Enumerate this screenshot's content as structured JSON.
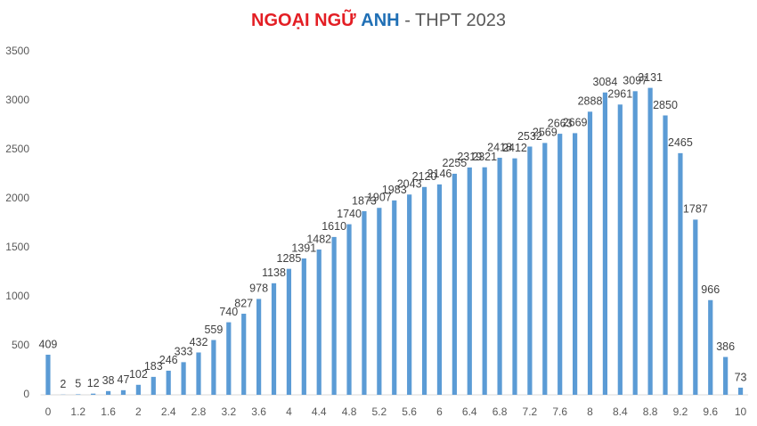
{
  "chart_data": {
    "type": "bar",
    "title": [
      "NGOẠI NGỮ",
      "ANH",
      "- THPT 2023"
    ],
    "title_colors": [
      "#e31e24",
      "#1f6fb5",
      "#595959"
    ],
    "categories": [
      "0",
      null,
      "1.2",
      null,
      "1.6",
      null,
      "2",
      null,
      "2.4",
      null,
      "2.8",
      null,
      "3.2",
      null,
      "3.6",
      null,
      "4",
      null,
      "4.4",
      null,
      "4.8",
      null,
      "5.2",
      null,
      "5.6",
      null,
      "6",
      null,
      "6.4",
      null,
      "6.8",
      null,
      "7.2",
      null,
      "7.6",
      null,
      "8",
      null,
      "8.4",
      null,
      "8.8",
      null,
      "9.2",
      null,
      "9.6",
      null,
      "10"
    ],
    "values": [
      409,
      2,
      5,
      12,
      38,
      47,
      102,
      183,
      246,
      333,
      432,
      559,
      740,
      827,
      978,
      1138,
      1285,
      1391,
      1482,
      1610,
      1740,
      1873,
      1907,
      1983,
      2043,
      2120,
      2146,
      2255,
      2319,
      2321,
      2418,
      2412,
      2532,
      2569,
      2663,
      2669,
      2888,
      3084,
      2961,
      3097,
      3131,
      2850,
      2465,
      1787,
      966,
      386,
      73
    ],
    "color": "#5b9bd5",
    "ylim": [
      0,
      3500
    ],
    "yticks": [
      0,
      500,
      1000,
      1500,
      2000,
      2500,
      3000,
      3500
    ],
    "grid": false
  }
}
